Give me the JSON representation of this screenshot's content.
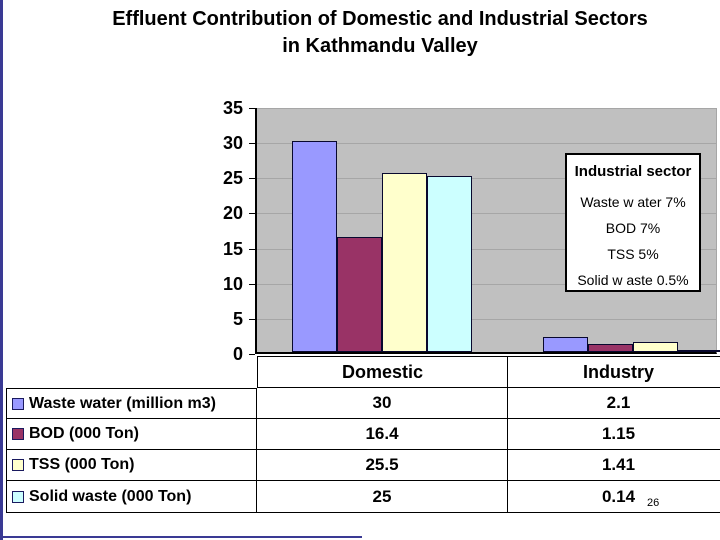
{
  "slide": {
    "page_number": "26",
    "accent_color": "#3a3a94",
    "plot_bg": "#c0c0c0",
    "gridline_color": "#a6a6a6"
  },
  "title": {
    "line1": "Effluent Contribution of Domestic and Industrial Sectors",
    "line2": "in Kathmandu Valley"
  },
  "chart_data": {
    "type": "bar",
    "title": "Effluent Contribution of Domestic and Industrial Sectors in Kathmandu Valley",
    "categories": [
      "Domestic",
      "Industry"
    ],
    "series": [
      {
        "name": "Waste water (million m3)",
        "color": "#9999ff",
        "values": [
          30,
          2.1
        ]
      },
      {
        "name": "BOD (000 Ton)",
        "color": "#993366",
        "values": [
          16.4,
          1.15
        ]
      },
      {
        "name": "TSS (000 Ton)",
        "color": "#ffffcc",
        "values": [
          25.5,
          1.41
        ]
      },
      {
        "name": "Solid waste (000 Ton)",
        "color": "#ccffff",
        "values": [
          25,
          0.14
        ]
      }
    ],
    "ylim": [
      0,
      35
    ],
    "yticks": [
      35,
      30,
      25,
      20,
      15,
      10,
      5,
      0
    ],
    "grid": true,
    "legend_position": "data-table-left-column",
    "annotation": {
      "title": "Industrial sector",
      "lines": [
        "Waste w ater 7%",
        "BOD 7%",
        "TSS 5%",
        "Solid w aste 0.5%"
      ]
    }
  },
  "table": {
    "col_headers": [
      "Domestic",
      "Industry"
    ],
    "rows": [
      {
        "label": "Waste water (million m3)",
        "swatch": "#9999ff",
        "values": [
          "30",
          "2.1"
        ]
      },
      {
        "label": "BOD (000 Ton)",
        "swatch": "#993366",
        "values": [
          "16.4",
          "1.15"
        ]
      },
      {
        "label": "TSS (000 Ton)",
        "swatch": "#ffffcc",
        "values": [
          "25.5",
          "1.41"
        ]
      },
      {
        "label": "Solid waste (000 Ton)",
        "swatch": "#ccffff",
        "values": [
          "25",
          "0.14"
        ]
      }
    ]
  }
}
